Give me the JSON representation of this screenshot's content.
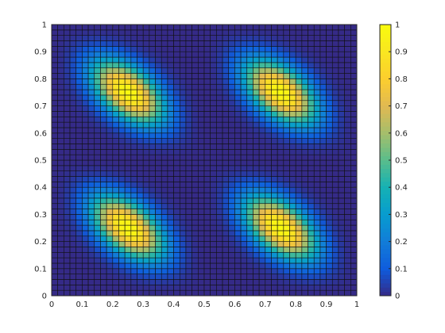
{
  "chart_data": {
    "type": "heatmap",
    "title": "",
    "xlabel": "",
    "ylabel": "",
    "xlim": [
      0,
      1
    ],
    "ylim": [
      0,
      1
    ],
    "x_ticks": [
      "0",
      "0.1",
      "0.2",
      "0.3",
      "0.4",
      "0.5",
      "0.6",
      "0.7",
      "0.8",
      "0.9",
      "1"
    ],
    "y_ticks": [
      "0",
      "0.1",
      "0.2",
      "0.3",
      "0.4",
      "0.5",
      "0.6",
      "0.7",
      "0.8",
      "0.9",
      "1"
    ],
    "colorbar": {
      "limits": [
        0,
        1
      ],
      "ticks": [
        "0",
        "0.1",
        "0.2",
        "0.3",
        "0.4",
        "0.5",
        "0.6",
        "0.7",
        "0.8",
        "0.9",
        "1"
      ],
      "colormap": "parula"
    },
    "grid": false,
    "grid_lines": true,
    "mesh_resolution": 50,
    "peaks": [
      {
        "x": 0.25,
        "y": 0.75,
        "value": 1.0
      },
      {
        "x": 0.75,
        "y": 0.75,
        "value": 1.0
      },
      {
        "x": 0.25,
        "y": 0.25,
        "value": 1.0
      },
      {
        "x": 0.75,
        "y": 0.25,
        "value": 1.0
      }
    ],
    "pattern": "periodic bumps elongated along the x = -y diagonal; minima near 0 along lines x = 0.5 and y = 0.5"
  }
}
